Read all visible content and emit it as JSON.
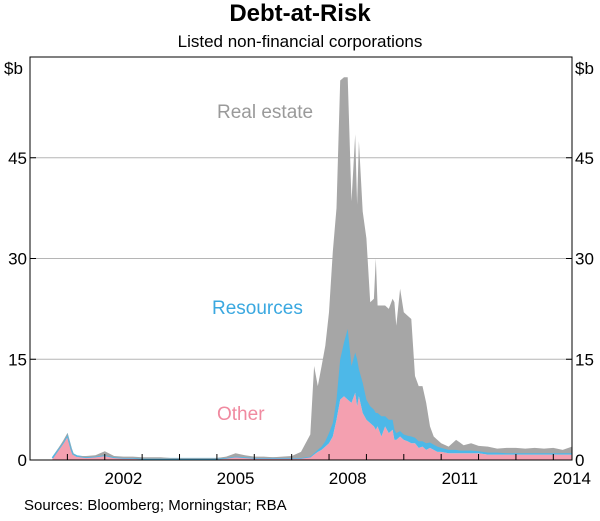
{
  "chart_data": {
    "type": "area",
    "title": "Debt-at-Risk",
    "subtitle": "Listed non-financial corporations",
    "ylabel_left": "$b",
    "ylabel_right": "$b",
    "ylim": [
      0,
      60
    ],
    "yticks": [
      0,
      15,
      30,
      45
    ],
    "xlim": [
      2000.0,
      2014.5
    ],
    "xticks": [
      2002,
      2005,
      2008,
      2011,
      2014
    ],
    "grid": true,
    "stacked": true,
    "annotations": [
      "Real estate",
      "Resources",
      "Other"
    ],
    "colors": {
      "Other": "#f4a0b0",
      "Resources": "#4db8e8",
      "Real estate": "#a6a6a6"
    },
    "x": [
      2000.6,
      2000.9,
      2001.0,
      2001.1,
      2001.15,
      2001.25,
      2001.5,
      2001.75,
      2002.0,
      2002.25,
      2002.5,
      2002.75,
      2003.0,
      2003.25,
      2003.5,
      2003.75,
      2004.0,
      2004.25,
      2004.5,
      2004.75,
      2005.0,
      2005.25,
      2005.5,
      2005.75,
      2006.0,
      2006.25,
      2006.5,
      2006.75,
      2007.0,
      2007.25,
      2007.5,
      2007.6,
      2007.7,
      2007.8,
      2007.9,
      2008.0,
      2008.1,
      2008.2,
      2008.3,
      2008.4,
      2008.5,
      2008.6,
      2008.7,
      2008.75,
      2008.8,
      2008.9,
      2009.0,
      2009.1,
      2009.2,
      2009.25,
      2009.3,
      2009.4,
      2009.5,
      2009.6,
      2009.7,
      2009.75,
      2009.8,
      2009.9,
      2010.0,
      2010.1,
      2010.2,
      2010.3,
      2010.4,
      2010.5,
      2010.6,
      2010.7,
      2010.8,
      2010.9,
      2011.0,
      2011.2,
      2011.4,
      2011.5,
      2011.6,
      2011.8,
      2012.0,
      2012.25,
      2012.5,
      2012.75,
      2013.0,
      2013.25,
      2013.5,
      2013.75,
      2014.0,
      2014.25,
      2014.5
    ],
    "series": [
      {
        "name": "Other",
        "values": [
          0.3,
          2.5,
          3.4,
          1.5,
          0.8,
          0.5,
          0.4,
          0.4,
          0.6,
          0.4,
          0.3,
          0.3,
          0.2,
          0.2,
          0.2,
          0.2,
          0.2,
          0.2,
          0.2,
          0.2,
          0.2,
          0.3,
          0.5,
          0.4,
          0.3,
          0.3,
          0.3,
          0.3,
          0.3,
          0.3,
          0.4,
          0.8,
          1.2,
          1.5,
          2.0,
          2.5,
          3.5,
          6.0,
          9.0,
          9.5,
          9.0,
          8.5,
          10.0,
          8.0,
          9.5,
          7.0,
          6.0,
          5.5,
          5.0,
          4.5,
          5.0,
          3.5,
          5.0,
          4.0,
          4.5,
          3.0,
          3.0,
          3.5,
          3.0,
          2.8,
          2.5,
          2.5,
          1.8,
          2.0,
          1.5,
          1.8,
          1.5,
          1.2,
          1.2,
          1.0,
          1.0,
          1.0,
          1.0,
          1.0,
          1.0,
          0.8,
          0.8,
          0.8,
          0.8,
          0.8,
          0.8,
          0.8,
          0.8,
          0.8,
          0.8
        ]
      },
      {
        "name": "Resources",
        "values": [
          0.0,
          0.2,
          0.3,
          0.2,
          0.1,
          0.1,
          0.0,
          0.1,
          0.1,
          0.0,
          0.0,
          0.0,
          0.0,
          0.0,
          0.0,
          0.0,
          0.0,
          0.0,
          0.0,
          0.0,
          0.0,
          0.0,
          0.0,
          0.0,
          0.0,
          0.0,
          0.0,
          0.0,
          0.0,
          0.0,
          0.1,
          0.2,
          0.3,
          0.5,
          0.8,
          1.5,
          2.0,
          3.0,
          6.0,
          8.0,
          10.5,
          5.5,
          6.0,
          7.0,
          4.0,
          4.5,
          3.0,
          2.5,
          2.5,
          2.5,
          2.0,
          3.0,
          1.5,
          2.0,
          1.5,
          1.5,
          1.0,
          0.8,
          0.8,
          0.8,
          1.0,
          0.8,
          1.0,
          0.8,
          1.0,
          0.8,
          0.8,
          0.8,
          0.6,
          0.5,
          0.5,
          0.4,
          0.4,
          0.4,
          0.3,
          0.3,
          0.3,
          0.2,
          0.2,
          0.2,
          0.2,
          0.2,
          0.2,
          0.2,
          0.2
        ]
      },
      {
        "name": "Real estate",
        "values": [
          0.0,
          0.3,
          0.3,
          0.3,
          0.1,
          0.0,
          0.2,
          0.2,
          0.6,
          0.2,
          0.2,
          0.2,
          0.2,
          0.2,
          0.2,
          0.1,
          0.1,
          0.1,
          0.1,
          0.1,
          0.1,
          0.2,
          0.5,
          0.3,
          0.2,
          0.2,
          0.1,
          0.2,
          0.3,
          0.9,
          3.3,
          13.0,
          9.5,
          12.0,
          14.2,
          18.0,
          25.5,
          28.5,
          41.5,
          39.5,
          37.5,
          24.5,
          32.5,
          23.0,
          34.0,
          25.5,
          24.0,
          15.5,
          16.5,
          23.0,
          16.0,
          16.5,
          16.5,
          16.5,
          18.0,
          19.0,
          16.0,
          21.2,
          18.2,
          17.9,
          17.5,
          9.2,
          8.2,
          8.2,
          6.0,
          2.4,
          1.2,
          1.0,
          0.7,
          0.5,
          1.5,
          1.2,
          0.8,
          1.1,
          0.8,
          0.9,
          0.6,
          0.8,
          0.8,
          0.7,
          0.8,
          0.7,
          0.8,
          0.5,
          1.0
        ]
      }
    ]
  },
  "source_text": "Sources:   Bloomberg; Morningstar; RBA"
}
